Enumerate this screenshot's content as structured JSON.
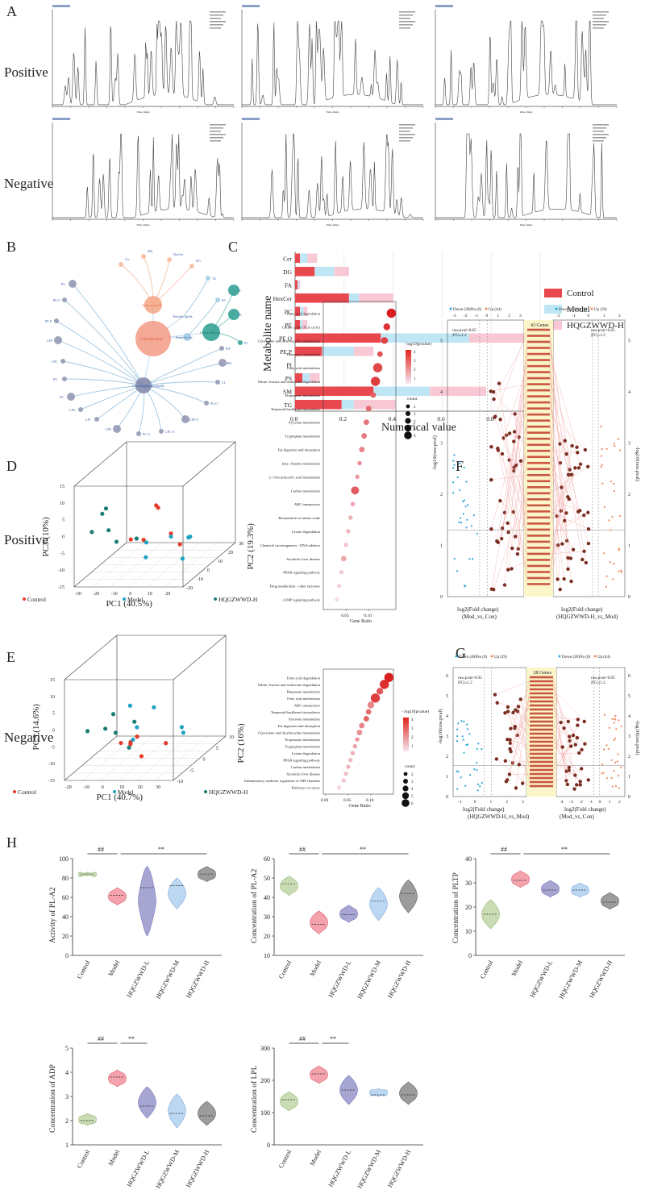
{
  "panels": {
    "A": "A",
    "B": "B",
    "C": "C",
    "D": "D",
    "E": "E",
    "F": "F",
    "G": "G",
    "H": "H"
  },
  "rows": {
    "positive": "Positive",
    "negative": "Negative",
    "positive_d": "Positive",
    "negative_e": "Negative"
  },
  "colors": {
    "control": "#e8474e",
    "model": "#bfe6f5",
    "hqgz": "#f8c8d4",
    "control_dot": "#e23b2a",
    "model_dot": "#1fa3c4",
    "hqgz_dot": "#1a7e74",
    "teal": "#2a9d8f",
    "salmon": "#f4a582",
    "slate": "#8086a8",
    "violin_control": "#c9dcb4",
    "violin_model": "#f4a3ad",
    "violin_L": "#a7a6d3",
    "violin_M": "#bcd7f2",
    "violin_H": "#9c9c9c"
  },
  "chart_data": [
    {
      "id": "C",
      "type": "bar",
      "stacked": true,
      "orientation": "horizontal",
      "ylabel": "Metabolite name",
      "xlabel": "Numerical value",
      "x_scale_note": "1e10",
      "xlim": [
        0,
        1.0
      ],
      "xticks": [
        "0.0",
        "0.2",
        "0.4",
        "0.6",
        "0.8",
        "1.0"
      ],
      "categories": [
        "Cer",
        "DG",
        "FA",
        "HexCer",
        "PC",
        "PE",
        "PE O",
        "PE P",
        "PI",
        "PS",
        "SM",
        "TG"
      ],
      "series": [
        {
          "name": "Control",
          "values": [
            0.02,
            0.08,
            0.01,
            0.22,
            0.02,
            0.02,
            0.35,
            0.11,
            0.0,
            0.03,
            0.32,
            0.19
          ]
        },
        {
          "name": "Model",
          "values": [
            0.03,
            0.08,
            0.005,
            0.04,
            0.015,
            0.01,
            0.36,
            0.13,
            0.0,
            0.03,
            0.23,
            0.05
          ]
        },
        {
          "name": "HQGZWWD-H",
          "values": [
            0.04,
            0.06,
            0.005,
            0.14,
            0.015,
            0.02,
            0.25,
            0.08,
            0.0,
            0.04,
            0.23,
            0.17
          ]
        }
      ],
      "legend": [
        "Control",
        "Model",
        "HQGZWWD-H"
      ]
    },
    {
      "id": "D-enrichment",
      "type": "scatter",
      "xlabel": "Gene Ratio",
      "legend_title": "- log10(pvalue)",
      "size_title": "count",
      "xticks": [
        "0.05",
        "0.10"
      ],
      "color_ticks": [
        "4",
        "3",
        "2",
        "1"
      ],
      "size_ticks": [
        "2",
        "3",
        "4",
        "5",
        "6"
      ],
      "pathways": [
        "Fatty acid degradation",
        "Citrate cycle (TCA cycle)",
        "Glyoxylate and dicarboxylate metabolism",
        "Butanoate metabolism",
        "Fatty acid metabolism",
        "Valine, leucine and isoleucine degradation",
        "Propanoate metabolism",
        "Terpenoid backbone biosynthesis",
        "Pyruvate metabolism",
        "Tryptophan metabolism",
        "Fat digestion and absorption",
        "beta- Alanine metabolism",
        "2- Oxocarboxylic acid metabolism",
        "Carbon metabolism",
        "ABC transporters",
        "Biosynthesis of amino acids",
        "Lysine degradation",
        "Chemical carcinogenesis - DNA adducts",
        "Alcoholic liver disease",
        "PPAR signaling pathway",
        "Drug metabolism - other enzymes",
        "cAMP signaling pathway"
      ],
      "gene_ratio": [
        0.15,
        0.14,
        0.135,
        0.125,
        0.12,
        0.115,
        0.11,
        0.1,
        0.095,
        0.09,
        0.085,
        0.08,
        0.075,
        0.07,
        0.065,
        0.06,
        0.055,
        0.05,
        0.045,
        0.04,
        0.035,
        0.03
      ],
      "neg_log10_p": [
        4.6,
        4.2,
        3.9,
        3.6,
        3.8,
        4.0,
        3.3,
        3.1,
        2.9,
        2.8,
        2.6,
        2.4,
        2.2,
        3.4,
        2.0,
        1.8,
        1.6,
        1.4,
        1.9,
        1.3,
        1.1,
        0.9
      ],
      "count": [
        6,
        4,
        4,
        3,
        6,
        6,
        3,
        3,
        3,
        3,
        3,
        2,
        2,
        5,
        2,
        2,
        2,
        2,
        3,
        2,
        2,
        2
      ]
    },
    {
      "id": "E-enrichment",
      "type": "scatter",
      "xlabel": "Gene Ratio",
      "legend_title": "- log10(pvalue)",
      "size_title": "count",
      "xticks": [
        "0.00",
        "0.05",
        "0.10"
      ],
      "color_ticks": [
        "4",
        "3",
        "2",
        "1"
      ],
      "size_ticks": [
        "2",
        "3",
        "4",
        "5",
        "6"
      ],
      "pathways": [
        "Fatty acid degradation",
        "Valine, leucine and isoleucine degradation",
        "Butanoate metabolism",
        "Fatty acid metabolism",
        "ABC transporters",
        "Terpenoid backbone biosynthesis",
        "Pyruvate metabolism",
        "Fat digestion and absorption",
        "Glyoxylate and dicarboxylate metabolism",
        "Propanoate metabolism",
        "Tryptophan metabolism",
        "Lysine degradation",
        "PPAR signaling pathway",
        "Carbon metabolism",
        "Alcoholic liver disease",
        "Inflammatory mediator regulation of TRP channels",
        "Pathways in cancer"
      ],
      "gene_ratio": [
        0.14,
        0.13,
        0.12,
        0.11,
        0.1,
        0.095,
        0.09,
        0.08,
        0.075,
        0.07,
        0.065,
        0.06,
        0.055,
        0.05,
        0.045,
        0.04,
        0.03
      ],
      "neg_log10_p": [
        4.6,
        4.3,
        3.5,
        4.0,
        2.6,
        3.0,
        3.2,
        2.6,
        2.4,
        2.2,
        2.0,
        1.8,
        1.6,
        1.7,
        1.5,
        1.3,
        1.0
      ],
      "count": [
        6,
        6,
        4,
        6,
        4,
        3,
        3,
        3,
        3,
        2,
        2,
        2,
        2,
        2,
        2,
        2,
        2
      ]
    },
    {
      "id": "H",
      "type": "violin",
      "groups": [
        "Control",
        "Model",
        "HQGZWWD-L",
        "HQGZWWD-M",
        "HQGZWWD-H"
      ],
      "panels": [
        {
          "ylabel": "Activity of PL-A2",
          "ylim": [
            0,
            100
          ],
          "yticks": [
            "0",
            "20",
            "40",
            "60",
            "80",
            "100"
          ],
          "medians": [
            84,
            62,
            70,
            72,
            84
          ],
          "mins": [
            82,
            52,
            20,
            48,
            76
          ],
          "maxs": [
            86,
            70,
            92,
            80,
            92
          ],
          "sig1": "##",
          "sig2": "**"
        },
        {
          "ylabel": "Concentration of PL-A2",
          "ylim": [
            10,
            60
          ],
          "yticks": [
            "10",
            "20",
            "30",
            "40",
            "50",
            "60"
          ],
          "medians": [
            47,
            26,
            31,
            38,
            42
          ],
          "mins": [
            41,
            21,
            27,
            28,
            32
          ],
          "maxs": [
            51,
            33,
            36,
            45,
            49
          ],
          "sig1": "##",
          "sig2": "**"
        },
        {
          "ylabel": "Concentration of PLTP",
          "ylim": [
            0,
            40
          ],
          "yticks": [
            "0",
            "10",
            "20",
            "30",
            "40"
          ],
          "medians": [
            17,
            31,
            27,
            27,
            22
          ],
          "mins": [
            11,
            28,
            24,
            24,
            19
          ],
          "maxs": [
            23,
            35,
            31,
            30,
            26
          ],
          "sig1": "##",
          "sig2": "**"
        },
        {
          "ylabel": "Concentration of ADP",
          "ylim": [
            1,
            5
          ],
          "yticks": [
            "1",
            "2",
            "3",
            "4",
            "5"
          ],
          "medians": [
            2.0,
            3.8,
            2.6,
            2.3,
            2.2
          ],
          "mins": [
            1.8,
            3.4,
            2.1,
            1.7,
            1.8
          ],
          "maxs": [
            2.3,
            4.1,
            3.4,
            3.1,
            2.8
          ],
          "sig1": "##",
          "sig2": "**"
        },
        {
          "ylabel": "Concentration of LPL",
          "ylim": [
            0,
            300
          ],
          "yticks": [
            "0",
            "100",
            "200",
            "300"
          ],
          "medians": [
            140,
            220,
            170,
            155,
            155
          ],
          "mins": [
            105,
            190,
            125,
            150,
            125
          ],
          "maxs": [
            165,
            245,
            215,
            175,
            195
          ],
          "sig1": "##",
          "sig2": "**"
        }
      ]
    },
    {
      "id": "D-pca",
      "type": "scatter",
      "axes": [
        "PC1 (40.5%)",
        "PC2 (19.3%)",
        "PC3 (10%)"
      ],
      "legend": [
        "Control",
        "Model",
        "HQGZWWD-H"
      ],
      "x_ticks": [
        "-30",
        "-20",
        "-10",
        "0",
        "10",
        "20"
      ],
      "y_ticks": [
        "-20",
        "-10",
        "0",
        "10",
        "20",
        "30"
      ],
      "z_ticks": [
        "-15",
        "-10",
        "-5",
        "0",
        "5",
        "10",
        "15"
      ]
    },
    {
      "id": "E-pca",
      "type": "scatter",
      "axes": [
        "PC1 (40.7%)",
        "PC2 (16%)",
        "PC3 (14.6%)"
      ],
      "legend": [
        "Control",
        "Model",
        "HQGZWWD-H"
      ],
      "x_ticks": [
        "-20",
        "-10",
        "0",
        "10",
        "20",
        "30"
      ],
      "y_ticks": [
        "-10",
        "-5",
        "0",
        "5",
        "10"
      ],
      "z_ticks": [
        "-15",
        "-10",
        "-5",
        "0",
        "5",
        "10",
        "15"
      ]
    }
  ],
  "network_B": {
    "center": "Classification",
    "nodes": [
      "Sphingolipids",
      "Neutral lipids",
      "Fatty Acyls",
      "Glycerolipids",
      "Glycerophospholipids"
    ],
    "leaves": [
      "Cer",
      "SM",
      "HexCer",
      "DG",
      "TG",
      "FA",
      "PE",
      "PC",
      "PI",
      "PS",
      "PE O",
      "PE P",
      "LPE",
      "LPC",
      "PG",
      "PA",
      "LPG",
      "LPI",
      "LPS",
      "PC O",
      "LPC O",
      "LPE O",
      "PG O",
      "CL",
      "MG",
      "PIP"
    ]
  },
  "volcano_F": {
    "left_xlabel": "log2(Fold change)",
    "left_sub": "(Mod_vs_Con)",
    "right_xlabel": "log2(Fold change)",
    "right_sub": "(HQGZWWD-H_vs_Mod)",
    "ylabel": "-log10(raw.pval)",
    "threshold": "raw.pval<0.05",
    "fc": "|FC|≥1.2",
    "genes": "43 Genes",
    "left_legend": [
      "Down (39)",
      "No (0)",
      "Up (44)"
    ],
    "right_legend": [
      "Down (44)",
      "No (0)",
      "Up (39)"
    ],
    "top_ticks_left": [
      "-3",
      "-2",
      "-1",
      "0",
      "1",
      "2",
      "3"
    ],
    "top_ticks_right": [
      "-2",
      "-1",
      "0",
      "1",
      "2"
    ],
    "y_ticks": [
      "0",
      "1",
      "2",
      "3",
      "4",
      "5"
    ]
  },
  "volcano_G": {
    "left_xlabel": "log2(Fold change)",
    "left_sub": "(HQGZWWD-H_vs_Mod)",
    "right_xlabel": "log2(Fold change)",
    "right_sub": "(Mod_vs_Con)",
    "ylabel": "-log10(raw.pval)",
    "threshold": "raw.pval<0.05",
    "fc": "|FC|≥1.2",
    "genes": "28 Genes",
    "left_legend": [
      "Down (44)",
      "No (0)",
      "Up (29)"
    ],
    "right_legend": [
      "Down (29)",
      "No (0)",
      "Up (44)"
    ],
    "bottom_ticks_left": [
      "-1",
      "0",
      "1",
      "2",
      "3"
    ],
    "bottom_ticks_right": [
      "-4",
      "-3",
      "-2",
      "-1",
      "0",
      "1",
      "2"
    ],
    "y_ticks": [
      "0",
      "1",
      "2",
      "3",
      "4",
      "5",
      "6"
    ]
  },
  "chromatogram_A": {
    "xlabel": "Time (min)"
  }
}
